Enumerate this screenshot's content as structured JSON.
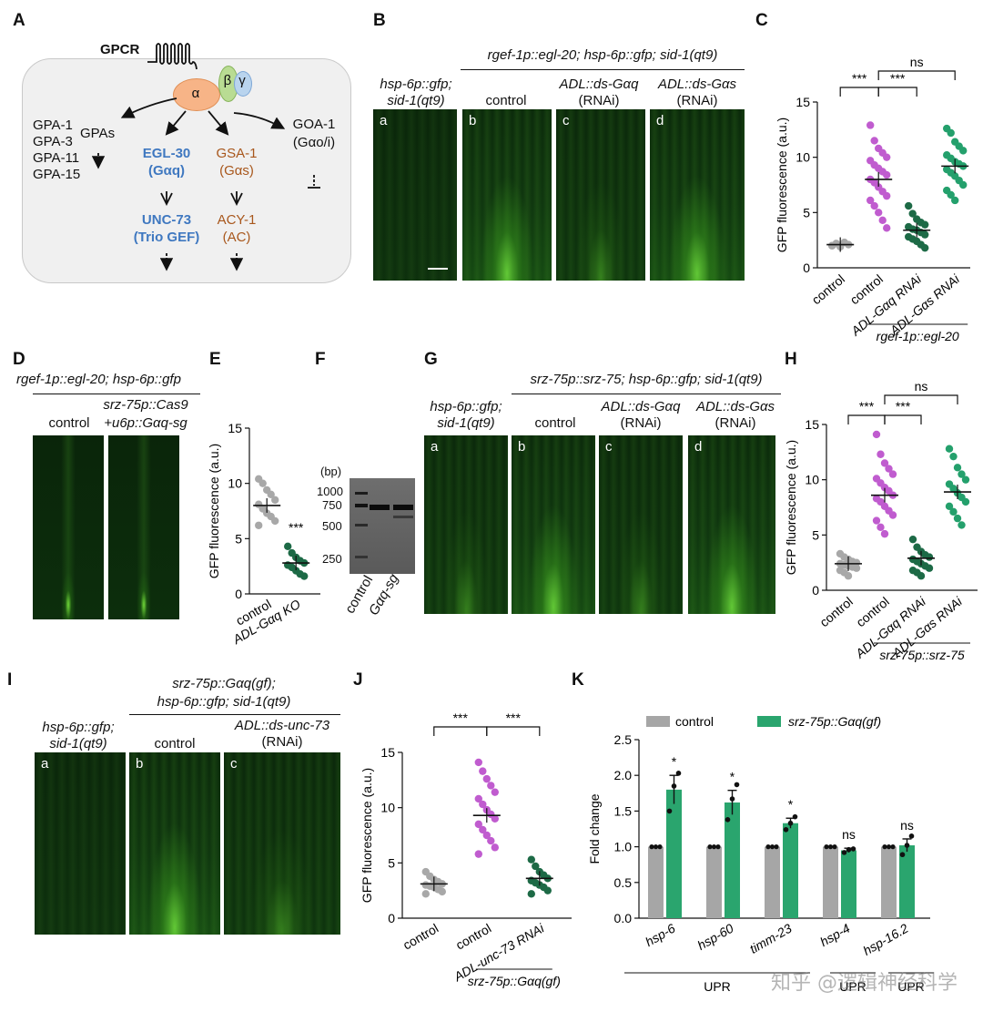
{
  "panels": [
    "A",
    "B",
    "C",
    "D",
    "E",
    "F",
    "G",
    "H",
    "I",
    "J",
    "K"
  ],
  "colors": {
    "gray": "#a8a8a8",
    "purple": "#c05ccf",
    "dark_green": "#1d6a46",
    "green": "#24a06c",
    "bar_green": "#2aa56e",
    "bar_gray": "#a6a6a6",
    "box_bg": "#f0f0f0"
  },
  "A": {
    "gpcr": "GPCR",
    "alpha": "α",
    "beta": "β",
    "gamma": "γ",
    "gpas": [
      "GPA-1",
      "GPA-3",
      "GPA-11",
      "GPA-15"
    ],
    "gpas_label": "GPAs",
    "egl30": "EGL-30",
    "egl30_sub": "(Gαq)",
    "gsa1": "GSA-1",
    "gsa1_sub": "(Gαs)",
    "goa1": "GOA-1",
    "goa1_sub": "(Gαo/i)",
    "unc73": "UNC-73",
    "unc73_sub": "(Trio GEF)",
    "acy1": "ACY-1",
    "acy1_sub": "(AC)"
  },
  "B": {
    "left_header": [
      "hsp-6p::gfp;",
      "sid-1(qt9)"
    ],
    "group_header": "rgef-1p::egl-20; hsp-6p::gfp; sid-1(qt9)",
    "cols": [
      [
        "control",
        ""
      ],
      [
        "ADL::ds-Gαq",
        "(RNAi)"
      ],
      [
        "ADL::ds-Gαs",
        "(RNAi)"
      ]
    ],
    "letters": [
      "a",
      "b",
      "c",
      "d"
    ]
  },
  "D": {
    "header": "rgef-1p::egl-20; hsp-6p::gfp",
    "col1": "control",
    "col2": [
      "srz-75p::Cas9",
      "+u6p::Gαq-sg"
    ]
  },
  "F": {
    "unit": "(bp)",
    "ticks": [
      "1000",
      "750",
      "500",
      "250"
    ],
    "lanes": [
      "control",
      "Gαq-sg"
    ]
  },
  "G": {
    "left_header": [
      "hsp-6p::gfp;",
      "sid-1(qt9)"
    ],
    "group_header": "srz-75p::srz-75; hsp-6p::gfp; sid-1(qt9)",
    "cols": [
      [
        "control",
        ""
      ],
      [
        "ADL::ds-Gαq",
        "(RNAi)"
      ],
      [
        "ADL::ds-Gαs",
        "(RNAi)"
      ]
    ],
    "letters": [
      "a",
      "b",
      "c",
      "d"
    ]
  },
  "I": {
    "left_header": [
      "hsp-6p::gfp;",
      "sid-1(qt9)"
    ],
    "group_header": [
      "srz-75p::Gαq(gf);",
      "hsp-6p::gfp; sid-1(qt9)"
    ],
    "cols": [
      [
        "control",
        ""
      ],
      [
        "ADL::ds-unc-73",
        "(RNAi)"
      ]
    ],
    "letters": [
      "a",
      "b",
      "c"
    ]
  },
  "chart_data": [
    {
      "panel": "C",
      "type": "scatter",
      "ylabel": "GFP fluorescence (a.u.)",
      "ylim": [
        0,
        15
      ],
      "yticks": [
        0,
        5,
        10,
        15
      ],
      "categories": [
        "control",
        "control",
        "ADL-Gαq RNAi",
        "ADL-Gαs RNAi"
      ],
      "group_label": "rgef-1p::egl-20",
      "means": [
        2.1,
        8.0,
        3.4,
        9.2
      ],
      "points": [
        [
          2.0,
          2.2,
          1.9,
          2.3,
          2.1,
          2.0
        ],
        [
          12.9,
          11.5,
          10.8,
          10.4,
          10.0,
          9.7,
          9.3,
          9.0,
          8.7,
          8.4,
          8.0,
          7.7,
          7.3,
          6.9,
          6.5,
          6.1,
          5.6,
          5.0,
          4.3,
          3.6
        ],
        [
          5.6,
          4.9,
          4.4,
          4.1,
          3.9,
          3.7,
          3.5,
          3.4,
          3.2,
          3.0,
          2.8,
          2.6,
          2.4,
          2.1,
          1.8
        ],
        [
          12.6,
          12.2,
          11.4,
          11.0,
          10.6,
          10.2,
          9.9,
          9.6,
          9.4,
          9.2,
          8.9,
          8.6,
          8.3,
          7.9,
          7.5,
          7.0,
          6.6,
          6.1
        ]
      ],
      "significance": [
        {
          "pair": [
            0,
            1
          ],
          "text": "***"
        },
        {
          "pair": [
            1,
            2
          ],
          "text": "***"
        },
        {
          "pair": [
            1,
            3
          ],
          "text": "ns"
        }
      ]
    },
    {
      "panel": "E",
      "type": "scatter",
      "ylabel": "GFP fluorescence (a.u.)",
      "ylim": [
        0,
        15
      ],
      "yticks": [
        0,
        5,
        10,
        15
      ],
      "categories": [
        "control",
        "ADL-Gαq KO"
      ],
      "means": [
        8.0,
        2.8
      ],
      "points": [
        [
          10.4,
          10.0,
          9.4,
          9.0,
          8.5,
          8.1,
          7.7,
          7.3,
          7.0,
          6.6,
          6.2
        ],
        [
          4.3,
          3.7,
          3.3,
          3.0,
          2.8,
          2.6,
          2.4,
          2.1,
          1.8,
          1.6
        ]
      ],
      "significance": [
        {
          "pair": [
            1,
            1
          ],
          "text": "***"
        }
      ]
    },
    {
      "panel": "H",
      "type": "scatter",
      "ylabel": "GFP fluorescence (a.u.)",
      "ylim": [
        0,
        15
      ],
      "yticks": [
        0,
        5,
        10,
        15
      ],
      "categories": [
        "control",
        "control",
        "ADL-Gαq RNAi",
        "ADL-Gαs RNAi"
      ],
      "group_label": "srz-75p::srz-75",
      "means": [
        2.4,
        8.6,
        2.9,
        8.9
      ],
      "points": [
        [
          3.3,
          3.0,
          2.8,
          2.6,
          2.5,
          2.4,
          2.3,
          2.2,
          2.1,
          2.0,
          1.8,
          1.6,
          1.3
        ],
        [
          14.1,
          12.3,
          11.5,
          11.0,
          10.5,
          10.1,
          9.7,
          9.3,
          9.0,
          8.6,
          8.3,
          8.0,
          7.6,
          7.2,
          6.8,
          6.3,
          5.7,
          5.1
        ],
        [
          4.6,
          3.9,
          3.5,
          3.2,
          3.0,
          2.8,
          2.6,
          2.4,
          2.2,
          2.0,
          1.8,
          1.6,
          1.3
        ],
        [
          12.8,
          12.1,
          11.1,
          10.5,
          10.0,
          9.6,
          9.2,
          8.8,
          8.4,
          8.0,
          7.6,
          7.1,
          6.5,
          5.9
        ]
      ],
      "significance": [
        {
          "pair": [
            0,
            1
          ],
          "text": "***"
        },
        {
          "pair": [
            1,
            2
          ],
          "text": "***"
        },
        {
          "pair": [
            1,
            3
          ],
          "text": "ns"
        }
      ]
    },
    {
      "panel": "J",
      "type": "scatter",
      "ylabel": "GFP fluorescence (a.u.)",
      "ylim": [
        0,
        15
      ],
      "yticks": [
        0,
        5,
        10,
        15
      ],
      "categories": [
        "control",
        "control",
        "ADL-unc-73 RNAi"
      ],
      "group_label": "srz-75p::Gαq(gf)",
      "means": [
        3.1,
        9.3,
        3.6
      ],
      "points": [
        [
          4.2,
          3.8,
          3.5,
          3.3,
          3.1,
          3.0,
          2.9,
          2.8,
          2.6,
          2.4,
          2.2
        ],
        [
          14.1,
          13.3,
          12.6,
          12.0,
          11.4,
          10.8,
          10.3,
          9.8,
          9.4,
          9.0,
          8.5,
          8.0,
          7.5,
          7.0,
          6.4,
          5.8
        ],
        [
          5.3,
          4.7,
          4.2,
          3.9,
          3.6,
          3.4,
          3.2,
          3.0,
          2.8,
          2.5,
          2.2
        ]
      ],
      "significance": [
        {
          "pair": [
            0,
            1
          ],
          "text": "***"
        },
        {
          "pair": [
            1,
            2
          ],
          "text": "***"
        }
      ]
    },
    {
      "panel": "K",
      "type": "bar",
      "ylabel": "Fold change",
      "ylim": [
        0,
        2.5
      ],
      "yticks": [
        "0.0",
        "0.5",
        "1.0",
        "1.5",
        "2.0",
        "2.5"
      ],
      "categories": [
        "hsp-6",
        "hsp-60",
        "timm-23",
        "hsp-4",
        "hsp-16.2"
      ],
      "series": [
        {
          "name": "control",
          "values": [
            1.0,
            1.0,
            1.0,
            1.0,
            1.0
          ],
          "errors": [
            0,
            0,
            0,
            0,
            0
          ]
        },
        {
          "name": "srz-75p::Gαq(gf)",
          "values": [
            1.8,
            1.62,
            1.33,
            0.95,
            1.02
          ],
          "errors": [
            0.2,
            0.17,
            0.07,
            0.03,
            0.09
          ]
        }
      ],
      "points": [
        [
          1.5,
          1.85,
          2.03
        ],
        [
          1.38,
          1.67,
          1.87
        ],
        [
          1.24,
          1.33,
          1.42
        ],
        [
          0.92,
          0.96,
          0.97
        ],
        [
          0.89,
          1.02,
          1.15
        ]
      ],
      "significance": [
        "*",
        "*",
        "*",
        "ns",
        "ns"
      ],
      "group_labels": [
        "UPR",
        "UPR",
        "UPR"
      ],
      "watermark": "知乎 @逻辑神经科学"
    }
  ]
}
